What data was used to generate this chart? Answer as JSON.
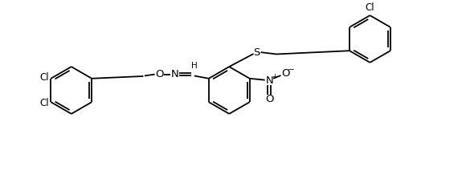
{
  "background_color": "#ffffff",
  "line_color": "#000000",
  "line_width": 1.3,
  "font_size": 8.5,
  "fig_width": 5.8,
  "fig_height": 2.18,
  "dpi": 100,
  "xlim": [
    0,
    11.6
  ],
  "ylim": [
    -1.0,
    3.4
  ]
}
